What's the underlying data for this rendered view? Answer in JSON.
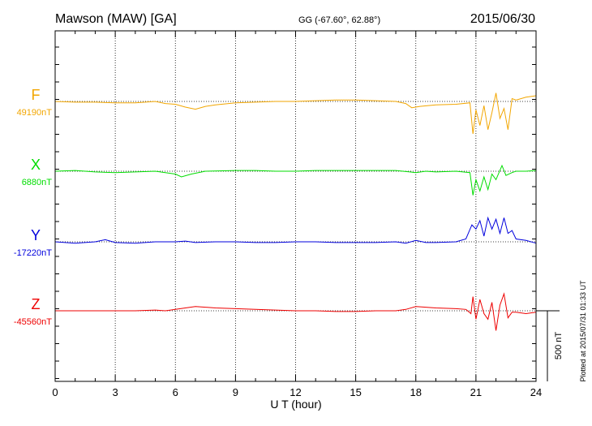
{
  "header": {
    "station": "Mawson (MAW)  [GA]",
    "coords": "GG (-67.60°,  62.88°)",
    "date": "2015/06/30"
  },
  "footer": {
    "plotted": "Plotted at 2015/07/31 01:33 UT"
  },
  "chart_data": {
    "type": "line",
    "xlabel": "U T (hour)",
    "xlim": [
      0,
      24
    ],
    "xticks": [
      0,
      3,
      6,
      9,
      12,
      15,
      18,
      21,
      24
    ],
    "xtick_labels": [
      "0",
      "3",
      "6",
      "9",
      "12",
      "15",
      "18",
      "21",
      "24"
    ],
    "scale_label": "500 nT",
    "scale_nT": 500,
    "series": [
      {
        "name": "F",
        "baseline_label": "49190nT",
        "color": "#f2a600",
        "points": [
          [
            0,
            0
          ],
          [
            1,
            -5
          ],
          [
            2,
            -5
          ],
          [
            3,
            -10
          ],
          [
            4,
            -10
          ],
          [
            5,
            0
          ],
          [
            5.5,
            -15
          ],
          [
            6,
            -20
          ],
          [
            6.5,
            -40
          ],
          [
            7,
            -55
          ],
          [
            7.5,
            -35
          ],
          [
            8,
            -25
          ],
          [
            9,
            -10
          ],
          [
            10,
            -5
          ],
          [
            11,
            0
          ],
          [
            12,
            0
          ],
          [
            13,
            5
          ],
          [
            14,
            10
          ],
          [
            15,
            10
          ],
          [
            16,
            5
          ],
          [
            17,
            0
          ],
          [
            17.5,
            -15
          ],
          [
            17.8,
            -45
          ],
          [
            18.2,
            -35
          ],
          [
            19,
            -25
          ],
          [
            20,
            -20
          ],
          [
            20.7,
            -10
          ],
          [
            20.85,
            -230
          ],
          [
            21,
            -60
          ],
          [
            21.2,
            -170
          ],
          [
            21.4,
            -30
          ],
          [
            21.6,
            -200
          ],
          [
            21.8,
            -80
          ],
          [
            22,
            60
          ],
          [
            22.2,
            -120
          ],
          [
            22.4,
            -50
          ],
          [
            22.6,
            -200
          ],
          [
            22.8,
            20
          ],
          [
            23,
            10
          ],
          [
            23.5,
            30
          ],
          [
            24,
            40
          ]
        ]
      },
      {
        "name": "X",
        "baseline_label": "6880nT",
        "color": "#00dd00",
        "points": [
          [
            0,
            0
          ],
          [
            1,
            5
          ],
          [
            2,
            -5
          ],
          [
            3,
            -10
          ],
          [
            4,
            -5
          ],
          [
            5,
            0
          ],
          [
            5.5,
            -10
          ],
          [
            6,
            -20
          ],
          [
            6.3,
            -40
          ],
          [
            6.8,
            -20
          ],
          [
            7.5,
            0
          ],
          [
            9,
            5
          ],
          [
            10,
            5
          ],
          [
            11,
            0
          ],
          [
            12,
            0
          ],
          [
            13,
            5
          ],
          [
            14,
            5
          ],
          [
            15,
            5
          ],
          [
            16,
            5
          ],
          [
            17,
            5
          ],
          [
            18,
            -10
          ],
          [
            18.5,
            0
          ],
          [
            19,
            -5
          ],
          [
            20,
            0
          ],
          [
            20.7,
            -10
          ],
          [
            20.85,
            -170
          ],
          [
            21,
            -60
          ],
          [
            21.2,
            -140
          ],
          [
            21.4,
            -40
          ],
          [
            21.6,
            -130
          ],
          [
            21.8,
            -20
          ],
          [
            22,
            -60
          ],
          [
            22.3,
            40
          ],
          [
            22.5,
            -30
          ],
          [
            22.8,
            -10
          ],
          [
            23,
            0
          ],
          [
            23.5,
            0
          ],
          [
            24,
            5
          ]
        ]
      },
      {
        "name": "Y",
        "baseline_label": "-17220nT",
        "color": "#0000dd",
        "points": [
          [
            0,
            0
          ],
          [
            1,
            -10
          ],
          [
            2,
            0
          ],
          [
            2.5,
            15
          ],
          [
            3,
            -5
          ],
          [
            4,
            -10
          ],
          [
            5,
            0
          ],
          [
            6,
            0
          ],
          [
            6.5,
            5
          ],
          [
            7,
            -5
          ],
          [
            8,
            0
          ],
          [
            9,
            0
          ],
          [
            10,
            -5
          ],
          [
            11,
            -5
          ],
          [
            12,
            0
          ],
          [
            13,
            0
          ],
          [
            14,
            -5
          ],
          [
            15,
            -5
          ],
          [
            16,
            -5
          ],
          [
            17,
            0
          ],
          [
            17.5,
            -10
          ],
          [
            18,
            10
          ],
          [
            18.5,
            -5
          ],
          [
            19,
            -5
          ],
          [
            20,
            0
          ],
          [
            20.5,
            20
          ],
          [
            20.8,
            120
          ],
          [
            21,
            90
          ],
          [
            21.2,
            150
          ],
          [
            21.4,
            40
          ],
          [
            21.6,
            170
          ],
          [
            21.8,
            90
          ],
          [
            22,
            160
          ],
          [
            22.2,
            60
          ],
          [
            22.4,
            170
          ],
          [
            22.6,
            60
          ],
          [
            22.8,
            80
          ],
          [
            23,
            20
          ],
          [
            23.5,
            10
          ],
          [
            24,
            -10
          ]
        ]
      },
      {
        "name": "Z",
        "baseline_label": "-45560nT",
        "color": "#ee0000",
        "points": [
          [
            0,
            0
          ],
          [
            1,
            0
          ],
          [
            2,
            0
          ],
          [
            3,
            0
          ],
          [
            4,
            0
          ],
          [
            5,
            5
          ],
          [
            5.5,
            0
          ],
          [
            6,
            10
          ],
          [
            6.5,
            20
          ],
          [
            7,
            30
          ],
          [
            7.5,
            25
          ],
          [
            8,
            20
          ],
          [
            9,
            15
          ],
          [
            10,
            10
          ],
          [
            11,
            5
          ],
          [
            12,
            0
          ],
          [
            13,
            0
          ],
          [
            14,
            -5
          ],
          [
            15,
            -5
          ],
          [
            16,
            0
          ],
          [
            17,
            0
          ],
          [
            17.5,
            10
          ],
          [
            18,
            30
          ],
          [
            18.5,
            25
          ],
          [
            19,
            20
          ],
          [
            20,
            15
          ],
          [
            20.5,
            10
          ],
          [
            20.75,
            -20
          ],
          [
            20.85,
            100
          ],
          [
            21,
            -60
          ],
          [
            21.2,
            80
          ],
          [
            21.4,
            -20
          ],
          [
            21.6,
            -60
          ],
          [
            21.8,
            60
          ],
          [
            22,
            -140
          ],
          [
            22.2,
            40
          ],
          [
            22.4,
            120
          ],
          [
            22.6,
            -50
          ],
          [
            22.8,
            -10
          ],
          [
            23,
            -10
          ],
          [
            23.5,
            -20
          ],
          [
            24,
            -10
          ]
        ]
      }
    ]
  }
}
